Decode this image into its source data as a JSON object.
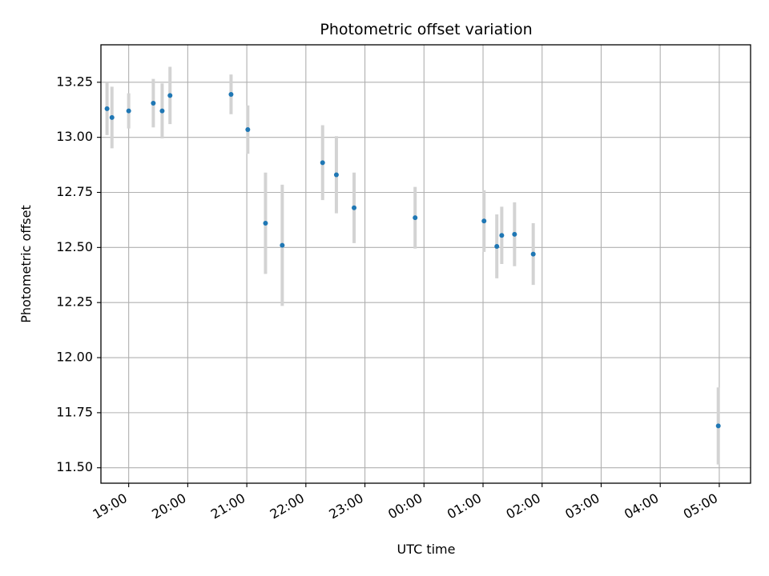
{
  "chart_data": {
    "type": "scatter",
    "title": "Photometric offset variation",
    "xlabel": "UTC time",
    "ylabel": "Photometric offset",
    "grid": true,
    "x_ticks": [
      "19:00",
      "20:00",
      "21:00",
      "22:00",
      "23:00",
      "00:00",
      "01:00",
      "02:00",
      "03:00",
      "04:00",
      "05:00"
    ],
    "x_start_time": "18:00",
    "xlim_hours": [
      18.53,
      29.53
    ],
    "ylim": [
      11.43,
      13.42
    ],
    "y_ticks": [
      "11.50",
      "11.75",
      "12.00",
      "12.25",
      "12.50",
      "12.75",
      "13.00",
      "13.25"
    ],
    "point_color": "#1f77b4",
    "errorbar_color": "#d3d3d3",
    "points": [
      {
        "time": "18:38",
        "y": 13.13,
        "err": 0.12
      },
      {
        "time": "18:43",
        "y": 13.09,
        "err": 0.14
      },
      {
        "time": "19:00",
        "y": 13.12,
        "err": 0.08
      },
      {
        "time": "19:25",
        "y": 13.155,
        "err": 0.11
      },
      {
        "time": "19:34",
        "y": 13.12,
        "err": 0.125
      },
      {
        "time": "19:42",
        "y": 13.19,
        "err": 0.13
      },
      {
        "time": "20:44",
        "y": 13.195,
        "err": 0.09
      },
      {
        "time": "21:01",
        "y": 13.035,
        "err": 0.11
      },
      {
        "time": "21:19",
        "y": 12.61,
        "err": 0.23
      },
      {
        "time": "21:36",
        "y": 12.51,
        "err": 0.275
      },
      {
        "time": "22:17",
        "y": 12.885,
        "err": 0.17
      },
      {
        "time": "22:31",
        "y": 12.83,
        "err": 0.175
      },
      {
        "time": "22:49",
        "y": 12.68,
        "err": 0.16
      },
      {
        "time": "23:51",
        "y": 12.635,
        "err": 0.14
      },
      {
        "time": "01:01",
        "y": 12.62,
        "err": 0.14
      },
      {
        "time": "01:14",
        "y": 12.505,
        "err": 0.145
      },
      {
        "time": "01:19",
        "y": 12.555,
        "err": 0.13
      },
      {
        "time": "01:32",
        "y": 12.56,
        "err": 0.145
      },
      {
        "time": "01:51",
        "y": 12.47,
        "err": 0.14
      },
      {
        "time": "04:59",
        "y": 11.69,
        "err": 0.175
      }
    ]
  }
}
